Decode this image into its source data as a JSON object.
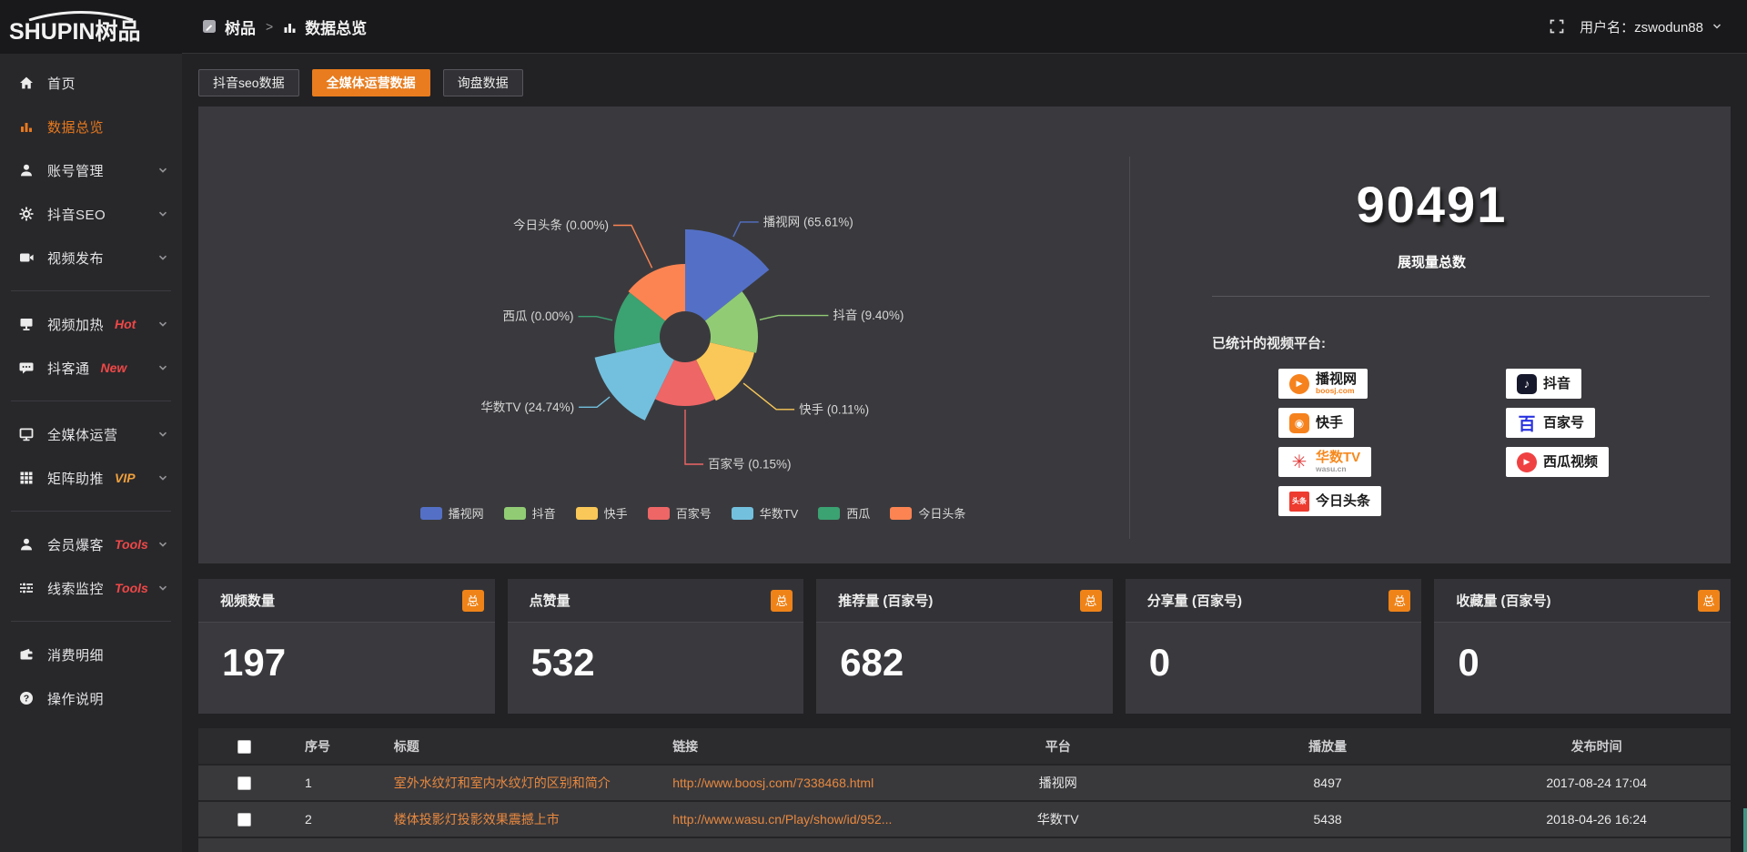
{
  "logo": {
    "text_en": "SHUPIN",
    "text_cn": "树品"
  },
  "topbar": {
    "breadcrumb_root": "树品",
    "breadcrumb_sep": ">",
    "breadcrumb_current": "数据总览",
    "user_label": "用户名：zswodun88"
  },
  "sidebar": {
    "items": [
      {
        "label": "首页"
      },
      {
        "label": "数据总览"
      },
      {
        "label": "账号管理"
      },
      {
        "label": "抖音SEO"
      },
      {
        "label": "视频发布"
      },
      {
        "label": "视频加热",
        "badge": "Hot"
      },
      {
        "label": "抖客通",
        "badge": "New"
      },
      {
        "label": "全媒体运营"
      },
      {
        "label": "矩阵助推",
        "badge": "VIP"
      },
      {
        "label": "会员爆客",
        "badge": "Tools"
      },
      {
        "label": "线索监控",
        "badge": "Tools"
      },
      {
        "label": "消费明细"
      },
      {
        "label": "操作说明"
      }
    ]
  },
  "tabs": {
    "items": [
      {
        "label": "抖音seo数据"
      },
      {
        "label": "全媒体运营数据",
        "active": true
      },
      {
        "label": "询盘数据"
      }
    ]
  },
  "summary": {
    "total": "90491",
    "total_label": "展现量总数",
    "platforms_title": "已统计的视频平台:"
  },
  "platforms": {
    "items": [
      {
        "name": "播视网",
        "sub": "boosj.com",
        "icon": "play-circle",
        "color": "#f6821e",
        "name_color": "#1a1a1a",
        "sub_color": "#f6821e"
      },
      {
        "name": "快手",
        "icon": "square-dot",
        "color": "#f6821e",
        "name_color": "#1a1a1a"
      },
      {
        "name": "华数TV",
        "sub": "wasu.cn",
        "icon": "burst",
        "color": "#e23a3a",
        "name_color": "#f6891e",
        "sub_color": "#9a9a9a"
      },
      {
        "name": "今日头条",
        "icon": "square-text",
        "glyph": "头条",
        "color": "#ed3b2f",
        "name_color": "#1a1a1a"
      },
      {
        "name": "抖音",
        "icon": "note",
        "color": "#16182c",
        "name_color": "#1a1a1a"
      },
      {
        "name": "百家号",
        "icon": "text",
        "glyph": "百",
        "color": "#2932e1",
        "name_color": "#1a1a1a"
      },
      {
        "name": "西瓜视频",
        "icon": "play-circle",
        "color": "#f04142",
        "name_color": "#1a1a1a"
      }
    ]
  },
  "chart_data": {
    "type": "pie",
    "rose": true,
    "values_are_percent": true,
    "equal_angles": true,
    "start_angle_deg": 0,
    "inner_radius": 28,
    "center": [
      535,
      253
    ],
    "legend_position": "bottom",
    "slices": [
      {
        "name": "播视网",
        "pct": 65.61,
        "color": "#5470c6",
        "r": 118,
        "label_r": 140,
        "label_dx": 20
      },
      {
        "name": "抖音",
        "pct": 9.4,
        "color": "#91cc75",
        "r": 80,
        "label_r": 105,
        "label_dx": 55
      },
      {
        "name": "快手",
        "pct": 0.11,
        "color": "#fac858",
        "r": 78,
        "label_r": 128,
        "label_dx": 20
      },
      {
        "name": "百家号",
        "pct": 0.15,
        "color": "#ee6666",
        "r": 76,
        "label_r": 140,
        "label_dx": 20
      },
      {
        "name": "华数TV",
        "pct": 24.74,
        "color": "#73c0de",
        "r": 102,
        "label_r": 124,
        "label_dx": 20
      },
      {
        "name": "西瓜",
        "pct": 0.0,
        "color": "#3ba272",
        "r": 78,
        "label_r": 100,
        "label_dx": 20
      },
      {
        "name": "今日头条",
        "pct": 0.0,
        "color": "#fc8452",
        "r": 80,
        "label_r": 136,
        "label_dx": 20
      }
    ]
  },
  "stats": {
    "cards": [
      {
        "label": "视频数量",
        "badge": "总",
        "value": "197"
      },
      {
        "label": "点赞量",
        "badge": "总",
        "value": "532"
      },
      {
        "label": "推荐量 (百家号)",
        "badge": "总",
        "value": "682"
      },
      {
        "label": "分享量 (百家号)",
        "badge": "总",
        "value": "0"
      },
      {
        "label": "收藏量 (百家号)",
        "badge": "总",
        "value": "0"
      }
    ]
  },
  "table": {
    "headers": {
      "no": "序号",
      "title": "标题",
      "link": "链接",
      "platform": "平台",
      "plays": "播放量",
      "time": "发布时间"
    },
    "rows": [
      {
        "no": "1",
        "title": "室外水纹灯和室内水纹灯的区别和简介",
        "link": "http://www.boosj.com/7338468.html",
        "platform": "播视网",
        "plays": "8497",
        "time": "2017-08-24 17:04"
      },
      {
        "no": "2",
        "title": "楼体投影灯投影效果震撼上市",
        "link": "http://www.wasu.cn/Play/show/id/952...",
        "platform": "华数TV",
        "plays": "5438",
        "time": "2018-04-26 16:24"
      }
    ],
    "has_partial_next_row": true
  }
}
